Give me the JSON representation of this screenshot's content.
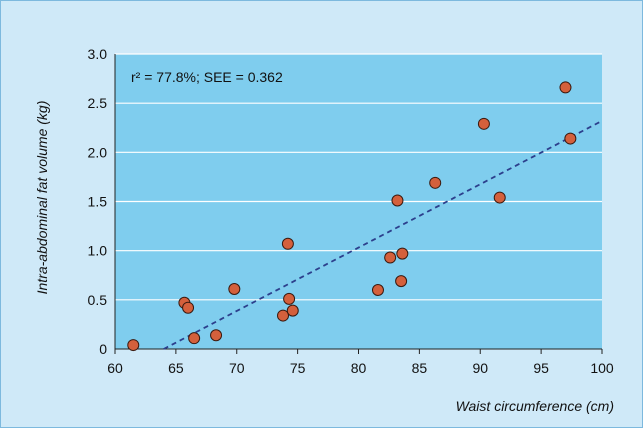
{
  "chart_data": {
    "type": "scatter",
    "xlabel": "Waist circumference (cm)",
    "ylabel": "Intra-abdominal fat volume (kg)",
    "annotation": "r² = 77.8%; SEE = 0.362",
    "xlim": [
      60,
      100
    ],
    "ylim": [
      0,
      3.0
    ],
    "x_ticks": [
      "60",
      "65",
      "70",
      "75",
      "80",
      "85",
      "90",
      "95",
      "100"
    ],
    "y_ticks": [
      "0",
      "0.5",
      "1.0",
      "1.5",
      "2.0",
      "2.5",
      "3.0"
    ],
    "grid": true,
    "points": [
      {
        "x": 61.5,
        "y": 0.04
      },
      {
        "x": 65.7,
        "y": 0.47
      },
      {
        "x": 66.0,
        "y": 0.42
      },
      {
        "x": 66.5,
        "y": 0.11
      },
      {
        "x": 68.3,
        "y": 0.14
      },
      {
        "x": 69.8,
        "y": 0.61
      },
      {
        "x": 73.8,
        "y": 0.34
      },
      {
        "x": 74.2,
        "y": 1.07
      },
      {
        "x": 74.3,
        "y": 0.51
      },
      {
        "x": 74.6,
        "y": 0.39
      },
      {
        "x": 81.6,
        "y": 0.6
      },
      {
        "x": 82.6,
        "y": 0.93
      },
      {
        "x": 83.2,
        "y": 1.51
      },
      {
        "x": 83.5,
        "y": 0.69
      },
      {
        "x": 83.6,
        "y": 0.97
      },
      {
        "x": 86.3,
        "y": 1.69
      },
      {
        "x": 90.3,
        "y": 2.29
      },
      {
        "x": 91.6,
        "y": 1.54
      },
      {
        "x": 97.0,
        "y": 2.66
      },
      {
        "x": 97.4,
        "y": 2.14
      }
    ],
    "trendline": {
      "style": "dashed",
      "x": [
        64.0,
        100.0
      ],
      "y": [
        0.0,
        2.32
      ]
    },
    "colors": {
      "plot_background": "#7fcdee",
      "figure_background": "#cfe9f8",
      "gridline": "#ffffff",
      "point_fill": "#d4603c",
      "point_stroke": "#3a1a10",
      "trendline": "#2c3f8c"
    }
  }
}
